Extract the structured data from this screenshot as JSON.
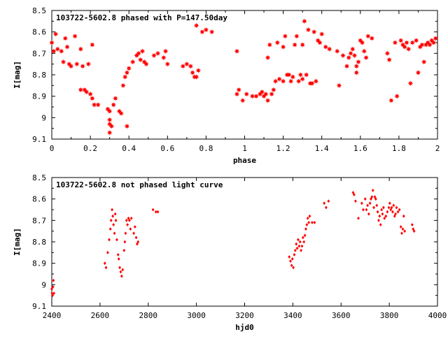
{
  "chart_data": [
    {
      "type": "scatter",
      "title": "103722-5602.8 phased with P=147.50day",
      "xlabel": "phase",
      "ylabel": "I[mag]",
      "xlim": [
        0,
        2
      ],
      "ylim": [
        8.5,
        9.1
      ],
      "y_inverted": true,
      "marker": "star",
      "color": "#ff0000",
      "xticks": [
        "0",
        "0.2",
        "0.4",
        "0.6",
        "0.8",
        "1",
        "1.2",
        "1.4",
        "1.6",
        "1.8",
        "2"
      ],
      "yticks": [
        "8.5",
        "8.6",
        "8.7",
        "8.8",
        "8.9",
        "9",
        "9.1"
      ],
      "points": [
        [
          0.0,
          8.65
        ],
        [
          0.01,
          8.69
        ],
        [
          0.02,
          8.61
        ],
        [
          0.03,
          8.68
        ],
        [
          0.05,
          8.69
        ],
        [
          0.06,
          8.74
        ],
        [
          0.07,
          8.63
        ],
        [
          0.08,
          8.67
        ],
        [
          0.09,
          8.75
        ],
        [
          0.1,
          8.76
        ],
        [
          0.12,
          8.62
        ],
        [
          0.13,
          8.75
        ],
        [
          0.15,
          8.68
        ],
        [
          0.15,
          8.87
        ],
        [
          0.16,
          8.76
        ],
        [
          0.17,
          8.87
        ],
        [
          0.18,
          8.88
        ],
        [
          0.19,
          8.75
        ],
        [
          0.2,
          8.89
        ],
        [
          0.21,
          8.91
        ],
        [
          0.21,
          8.66
        ],
        [
          0.22,
          8.94
        ],
        [
          0.24,
          8.94
        ],
        [
          0.29,
          8.96
        ],
        [
          0.3,
          8.97
        ],
        [
          0.3,
          9.01
        ],
        [
          0.3,
          9.03
        ],
        [
          0.3,
          9.07
        ],
        [
          0.31,
          9.04
        ],
        [
          0.32,
          8.94
        ],
        [
          0.33,
          8.91
        ],
        [
          0.35,
          8.97
        ],
        [
          0.36,
          8.98
        ],
        [
          0.37,
          8.85
        ],
        [
          0.38,
          8.81
        ],
        [
          0.39,
          8.79
        ],
        [
          0.39,
          9.04
        ],
        [
          0.4,
          8.77
        ],
        [
          0.42,
          8.74
        ],
        [
          0.44,
          8.71
        ],
        [
          0.45,
          8.7
        ],
        [
          0.46,
          8.73
        ],
        [
          0.47,
          8.69
        ],
        [
          0.48,
          8.74
        ],
        [
          0.49,
          8.75
        ],
        [
          0.53,
          8.71
        ],
        [
          0.55,
          8.7
        ],
        [
          0.58,
          8.72
        ],
        [
          0.59,
          8.69
        ],
        [
          0.6,
          8.75
        ],
        [
          0.68,
          8.76
        ],
        [
          0.7,
          8.75
        ],
        [
          0.72,
          8.76
        ],
        [
          0.73,
          8.79
        ],
        [
          0.74,
          8.81
        ],
        [
          0.75,
          8.81
        ],
        [
          0.75,
          8.57
        ],
        [
          0.76,
          8.78
        ],
        [
          0.78,
          8.6
        ],
        [
          0.8,
          8.59
        ],
        [
          0.83,
          8.6
        ],
        [
          0.96,
          8.89
        ],
        [
          0.96,
          8.69
        ],
        [
          0.97,
          8.87
        ],
        [
          0.99,
          8.92
        ],
        [
          1.01,
          8.89
        ],
        [
          1.04,
          8.9
        ],
        [
          1.06,
          8.9
        ],
        [
          1.08,
          8.89
        ],
        [
          1.09,
          8.88
        ],
        [
          1.1,
          8.9
        ],
        [
          1.11,
          8.89
        ],
        [
          1.12,
          8.92
        ],
        [
          1.12,
          8.72
        ],
        [
          1.13,
          8.66
        ],
        [
          1.14,
          8.89
        ],
        [
          1.15,
          8.87
        ],
        [
          1.16,
          8.83
        ],
        [
          1.17,
          8.65
        ],
        [
          1.18,
          8.82
        ],
        [
          1.2,
          8.83
        ],
        [
          1.2,
          8.67
        ],
        [
          1.21,
          8.62
        ],
        [
          1.22,
          8.8
        ],
        [
          1.23,
          8.8
        ],
        [
          1.24,
          8.83
        ],
        [
          1.25,
          8.81
        ],
        [
          1.26,
          8.66
        ],
        [
          1.27,
          8.62
        ],
        [
          1.28,
          8.83
        ],
        [
          1.29,
          8.8
        ],
        [
          1.3,
          8.82
        ],
        [
          1.3,
          8.66
        ],
        [
          1.31,
          8.55
        ],
        [
          1.32,
          8.8
        ],
        [
          1.33,
          8.59
        ],
        [
          1.34,
          8.84
        ],
        [
          1.35,
          8.84
        ],
        [
          1.36,
          8.6
        ],
        [
          1.37,
          8.83
        ],
        [
          1.38,
          8.64
        ],
        [
          1.39,
          8.65
        ],
        [
          1.4,
          8.61
        ],
        [
          1.42,
          8.67
        ],
        [
          1.44,
          8.68
        ],
        [
          1.48,
          8.69
        ],
        [
          1.49,
          8.85
        ],
        [
          1.51,
          8.71
        ],
        [
          1.53,
          8.76
        ],
        [
          1.54,
          8.72
        ],
        [
          1.55,
          8.7
        ],
        [
          1.56,
          8.68
        ],
        [
          1.57,
          8.71
        ],
        [
          1.58,
          8.79
        ],
        [
          1.58,
          8.76
        ],
        [
          1.59,
          8.74
        ],
        [
          1.6,
          8.64
        ],
        [
          1.61,
          8.65
        ],
        [
          1.62,
          8.69
        ],
        [
          1.63,
          8.72
        ],
        [
          1.64,
          8.62
        ],
        [
          1.66,
          8.63
        ],
        [
          1.74,
          8.7
        ],
        [
          1.75,
          8.73
        ],
        [
          1.76,
          8.92
        ],
        [
          1.78,
          8.65
        ],
        [
          1.79,
          8.9
        ],
        [
          1.81,
          8.64
        ],
        [
          1.82,
          8.66
        ],
        [
          1.83,
          8.67
        ],
        [
          1.84,
          8.65
        ],
        [
          1.85,
          8.68
        ],
        [
          1.86,
          8.84
        ],
        [
          1.87,
          8.65
        ],
        [
          1.89,
          8.64
        ],
        [
          1.9,
          8.79
        ],
        [
          1.91,
          8.67
        ],
        [
          1.92,
          8.66
        ],
        [
          1.93,
          8.74
        ],
        [
          1.94,
          8.66
        ],
        [
          1.95,
          8.65
        ],
        [
          1.96,
          8.66
        ],
        [
          1.97,
          8.64
        ],
        [
          1.98,
          8.65
        ],
        [
          1.99,
          8.63
        ]
      ]
    },
    {
      "type": "scatter",
      "title": "103722-5602.8 not phased light curve",
      "xlabel": "hjd0",
      "ylabel": "I[mag]",
      "xlim": [
        2400,
        4000
      ],
      "ylim": [
        8.5,
        9.1
      ],
      "y_inverted": true,
      "marker": "diamond",
      "color": "#ff0000",
      "xticks": [
        "2400",
        "2600",
        "2800",
        "3000",
        "3200",
        "3400",
        "3600",
        "3800",
        "4000"
      ],
      "yticks": [
        "8.5",
        "8.6",
        "8.7",
        "8.8",
        "8.9",
        "9",
        "9.1"
      ],
      "points": [
        [
          2400,
          9.02
        ],
        [
          2401,
          9.04
        ],
        [
          2403,
          9.05
        ],
        [
          2405,
          9.01
        ],
        [
          2407,
          8.98
        ],
        [
          2409,
          9.04
        ],
        [
          2620,
          8.9
        ],
        [
          2625,
          8.92
        ],
        [
          2632,
          8.85
        ],
        [
          2638,
          8.79
        ],
        [
          2643,
          8.74
        ],
        [
          2646,
          8.7
        ],
        [
          2650,
          8.65
        ],
        [
          2653,
          8.68
        ],
        [
          2656,
          8.72
        ],
        [
          2660,
          8.76
        ],
        [
          2663,
          8.67
        ],
        [
          2666,
          8.7
        ],
        [
          2670,
          8.79
        ],
        [
          2675,
          8.86
        ],
        [
          2678,
          8.88
        ],
        [
          2682,
          8.92
        ],
        [
          2686,
          8.94
        ],
        [
          2690,
          8.96
        ],
        [
          2694,
          8.93
        ],
        [
          2700,
          8.84
        ],
        [
          2703,
          8.8
        ],
        [
          2706,
          8.76
        ],
        [
          2710,
          8.7
        ],
        [
          2714,
          8.72
        ],
        [
          2718,
          8.69
        ],
        [
          2722,
          8.7
        ],
        [
          2726,
          8.74
        ],
        [
          2730,
          8.69
        ],
        [
          2740,
          8.76
        ],
        [
          2745,
          8.73
        ],
        [
          2750,
          8.78
        ],
        [
          2754,
          8.81
        ],
        [
          2758,
          8.8
        ],
        [
          2820,
          8.65
        ],
        [
          2832,
          8.66
        ],
        [
          2840,
          8.66
        ],
        [
          3385,
          8.87
        ],
        [
          3390,
          8.89
        ],
        [
          3395,
          8.91
        ],
        [
          3398,
          8.88
        ],
        [
          3402,
          8.92
        ],
        [
          3406,
          8.86
        ],
        [
          3410,
          8.84
        ],
        [
          3414,
          8.81
        ],
        [
          3418,
          8.83
        ],
        [
          3422,
          8.79
        ],
        [
          3426,
          8.82
        ],
        [
          3430,
          8.8
        ],
        [
          3434,
          8.84
        ],
        [
          3438,
          8.82
        ],
        [
          3442,
          8.78
        ],
        [
          3446,
          8.8
        ],
        [
          3450,
          8.77
        ],
        [
          3454,
          8.74
        ],
        [
          3458,
          8.72
        ],
        [
          3462,
          8.69
        ],
        [
          3466,
          8.71
        ],
        [
          3470,
          8.68
        ],
        [
          3480,
          8.71
        ],
        [
          3490,
          8.71
        ],
        [
          3530,
          8.62
        ],
        [
          3538,
          8.64
        ],
        [
          3548,
          8.61
        ],
        [
          3650,
          8.57
        ],
        [
          3654,
          8.58
        ],
        [
          3660,
          8.61
        ],
        [
          3672,
          8.69
        ],
        [
          3686,
          8.62
        ],
        [
          3692,
          8.65
        ],
        [
          3700,
          8.6
        ],
        [
          3705,
          8.65
        ],
        [
          3710,
          8.63
        ],
        [
          3715,
          8.67
        ],
        [
          3720,
          8.62
        ],
        [
          3724,
          8.6
        ],
        [
          3728,
          8.59
        ],
        [
          3732,
          8.56
        ],
        [
          3736,
          8.64
        ],
        [
          3740,
          8.59
        ],
        [
          3744,
          8.6
        ],
        [
          3748,
          8.63
        ],
        [
          3752,
          8.66
        ],
        [
          3756,
          8.7
        ],
        [
          3760,
          8.68
        ],
        [
          3764,
          8.72
        ],
        [
          3768,
          8.65
        ],
        [
          3772,
          8.67
        ],
        [
          3776,
          8.64
        ],
        [
          3780,
          8.69
        ],
        [
          3786,
          8.68
        ],
        [
          3792,
          8.66
        ],
        [
          3798,
          8.64
        ],
        [
          3802,
          8.62
        ],
        [
          3806,
          8.65
        ],
        [
          3810,
          8.64
        ],
        [
          3814,
          8.66
        ],
        [
          3818,
          8.63
        ],
        [
          3822,
          8.68
        ],
        [
          3826,
          8.67
        ],
        [
          3830,
          8.64
        ],
        [
          3836,
          8.66
        ],
        [
          3842,
          8.65
        ],
        [
          3848,
          8.73
        ],
        [
          3852,
          8.76
        ],
        [
          3856,
          8.74
        ],
        [
          3860,
          8.68
        ],
        [
          3864,
          8.75
        ],
        [
          3895,
          8.72
        ],
        [
          3899,
          8.74
        ],
        [
          3903,
          8.75
        ]
      ]
    }
  ]
}
